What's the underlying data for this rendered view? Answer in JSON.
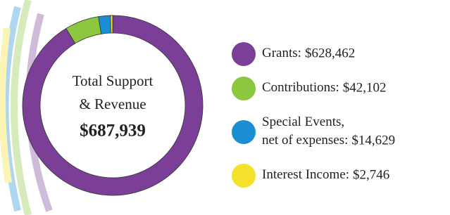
{
  "chart_data": {
    "type": "pie",
    "categories": [
      "Grants:",
      "Contributions:",
      "Special Events,\nnet of expenses:",
      "Interest Income:"
    ],
    "values": [
      628462,
      42102,
      14629,
      2746
    ],
    "value_labels": [
      "$628,462",
      "$42,102",
      "$14,629",
      "$2,746"
    ],
    "colors": [
      "#7b3f98",
      "#8dc63f",
      "#1b8fd2",
      "#f5e12a"
    ],
    "total": {
      "label": "Total Support\n& Revenue",
      "value": 687939,
      "value_label": "$687,939"
    }
  }
}
